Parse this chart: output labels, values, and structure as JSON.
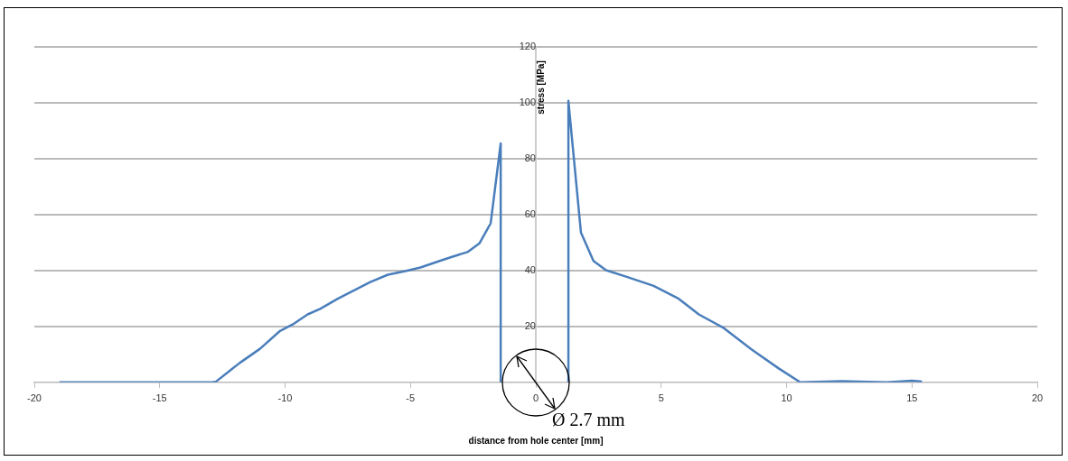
{
  "chart_data": {
    "type": "line",
    "xlabel": "distance from hole center [mm]",
    "ylabel": "stress [MPa]",
    "annotations": [
      "Ø 2.7 mm"
    ],
    "series": [
      {
        "color": "#4a7ebb",
        "x": [
          -19.0,
          -16,
          -14,
          -12.9,
          -12.75,
          -11.8,
          -11.0,
          -10.2,
          -9.7,
          -9.1,
          -8.6,
          -7.9,
          -7.25,
          -6.6,
          -5.9,
          -5.2,
          -4.6,
          -3.65,
          -2.7,
          -2.25,
          -1.8,
          -1.4,
          -1.4
        ],
        "values": [
          0,
          0,
          0,
          0,
          0.3,
          7,
          12,
          18.4,
          20.7,
          24.3,
          26.3,
          29.9,
          32.9,
          35.9,
          38.5,
          39.8,
          41.1,
          44,
          46.7,
          49.7,
          56.9,
          85.5,
          0
        ]
      },
      {
        "color": "#4a7ebb",
        "x": [
          1.3,
          1.3,
          1.8,
          2.3,
          2.8,
          3.6,
          4.7,
          5.7,
          6.5,
          7.5,
          8.6,
          9.7,
          10.55,
          12.2,
          14,
          15,
          15.4
        ],
        "values": [
          0,
          100.7,
          53.6,
          43.4,
          40.1,
          37.8,
          34.5,
          29.9,
          24.3,
          19.4,
          11.8,
          4.9,
          0,
          0.4,
          0,
          0.6,
          0.3
        ]
      }
    ],
    "xlim": [
      -20,
      20
    ],
    "xticks": [
      -20,
      -15,
      -10,
      -5,
      0,
      5,
      10,
      15,
      20
    ],
    "ylim": [
      0,
      120
    ],
    "yticks": [
      20,
      40,
      60,
      80,
      100,
      120
    ],
    "grid": "y",
    "legend": false,
    "marker": "none",
    "line_style": "solid"
  }
}
